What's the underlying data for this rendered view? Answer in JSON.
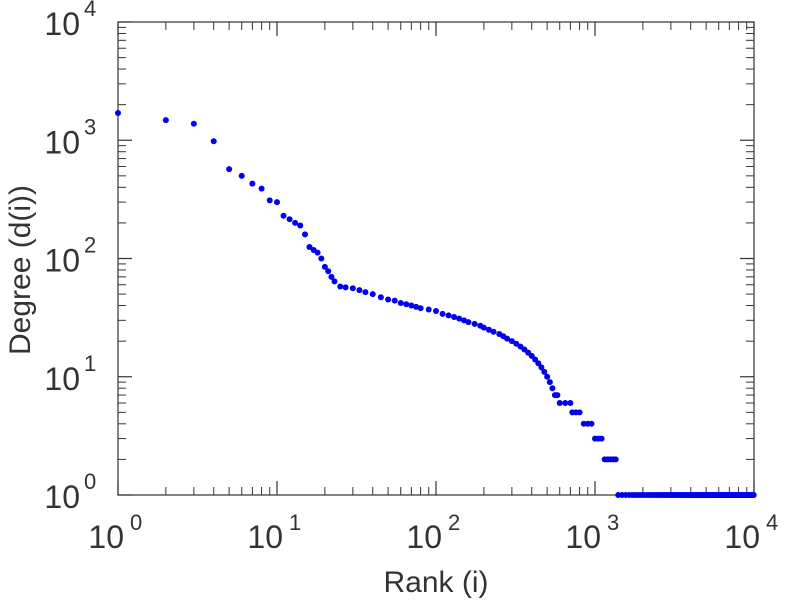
{
  "chart_data": {
    "type": "scatter",
    "title": "",
    "xlabel": "Rank (i)",
    "ylabel": "Degree (d(i))",
    "x_scale": "log",
    "y_scale": "log",
    "xlim": [
      1,
      10000
    ],
    "ylim": [
      1,
      10000
    ],
    "x_ticks": [
      {
        "base": "10",
        "exp": "0"
      },
      {
        "base": "10",
        "exp": "1"
      },
      {
        "base": "10",
        "exp": "2"
      },
      {
        "base": "10",
        "exp": "3"
      },
      {
        "base": "10",
        "exp": "4"
      }
    ],
    "y_ticks": [
      {
        "base": "10",
        "exp": "0"
      },
      {
        "base": "10",
        "exp": "1"
      },
      {
        "base": "10",
        "exp": "2"
      },
      {
        "base": "10",
        "exp": "3"
      },
      {
        "base": "10",
        "exp": "4"
      }
    ],
    "grid": false,
    "marker_color": "#0000ee",
    "series": [
      {
        "points": [
          [
            1,
            1700
          ],
          [
            2,
            1480
          ],
          [
            3,
            1380
          ],
          [
            4,
            980
          ],
          [
            5,
            570
          ],
          [
            6,
            500
          ],
          [
            7,
            430
          ],
          [
            8,
            390
          ],
          [
            9,
            310
          ],
          [
            10,
            300
          ],
          [
            11,
            230
          ],
          [
            12,
            215
          ],
          [
            13,
            200
          ],
          [
            14,
            190
          ],
          [
            15,
            160
          ],
          [
            16,
            125
          ],
          [
            17,
            118
          ],
          [
            18,
            112
          ],
          [
            19,
            100
          ],
          [
            20,
            85
          ],
          [
            21,
            78
          ],
          [
            22,
            70
          ],
          [
            23,
            64
          ],
          [
            25,
            58
          ],
          [
            27,
            57
          ],
          [
            30,
            56
          ],
          [
            33,
            54
          ],
          [
            36,
            52
          ],
          [
            40,
            50
          ],
          [
            45,
            47
          ],
          [
            50,
            45
          ],
          [
            55,
            44
          ],
          [
            60,
            42
          ],
          [
            65,
            41
          ],
          [
            70,
            40
          ],
          [
            75,
            39
          ],
          [
            80,
            38
          ],
          [
            90,
            37
          ],
          [
            100,
            36
          ],
          [
            110,
            34
          ],
          [
            120,
            33
          ],
          [
            130,
            32
          ],
          [
            140,
            31
          ],
          [
            150,
            30
          ],
          [
            160,
            29
          ],
          [
            175,
            28
          ],
          [
            190,
            27
          ],
          [
            200,
            26
          ],
          [
            215,
            25
          ],
          [
            230,
            24
          ],
          [
            250,
            23
          ],
          [
            265,
            22
          ],
          [
            280,
            21
          ],
          [
            300,
            20
          ],
          [
            320,
            19
          ],
          [
            340,
            18
          ],
          [
            360,
            17
          ],
          [
            380,
            16
          ],
          [
            400,
            15
          ],
          [
            420,
            14
          ],
          [
            440,
            13
          ],
          [
            460,
            12
          ],
          [
            480,
            11
          ],
          [
            500,
            10
          ],
          [
            520,
            9
          ],
          [
            540,
            8
          ],
          [
            560,
            7
          ],
          [
            580,
            7
          ],
          [
            600,
            6
          ],
          [
            650,
            6
          ],
          [
            700,
            6
          ],
          [
            720,
            5
          ],
          [
            760,
            5
          ],
          [
            800,
            5
          ],
          [
            850,
            4
          ],
          [
            900,
            4
          ],
          [
            950,
            4
          ],
          [
            1000,
            3
          ],
          [
            1050,
            3
          ],
          [
            1100,
            3
          ],
          [
            1150,
            2
          ],
          [
            1200,
            2
          ],
          [
            1250,
            2
          ],
          [
            1300,
            2
          ],
          [
            1350,
            2
          ],
          [
            1400,
            1
          ],
          [
            1480,
            1
          ],
          [
            1560,
            1
          ],
          [
            1640,
            1
          ],
          [
            1720,
            1
          ],
          [
            1800,
            1
          ],
          [
            1880,
            1
          ],
          [
            1960,
            1
          ],
          [
            2040,
            1
          ],
          [
            2120,
            1
          ],
          [
            2200,
            1
          ],
          [
            2280,
            1
          ],
          [
            2360,
            1
          ],
          [
            2440,
            1
          ],
          [
            2520,
            1
          ],
          [
            2600,
            1
          ],
          [
            2680,
            1
          ],
          [
            2760,
            1
          ],
          [
            2840,
            1
          ],
          [
            2920,
            1
          ],
          [
            3000,
            1
          ],
          [
            3080,
            1
          ],
          [
            3160,
            1
          ],
          [
            3240,
            1
          ],
          [
            3320,
            1
          ],
          [
            3400,
            1
          ],
          [
            3480,
            1
          ],
          [
            3560,
            1
          ],
          [
            3640,
            1
          ],
          [
            3720,
            1
          ],
          [
            3800,
            1
          ],
          [
            3880,
            1
          ],
          [
            3960,
            1
          ],
          [
            4040,
            1
          ],
          [
            4120,
            1
          ],
          [
            4200,
            1
          ],
          [
            4280,
            1
          ],
          [
            4360,
            1
          ],
          [
            4440,
            1
          ],
          [
            4520,
            1
          ],
          [
            4600,
            1
          ],
          [
            4680,
            1
          ],
          [
            4760,
            1
          ],
          [
            4840,
            1
          ],
          [
            4920,
            1
          ],
          [
            5000,
            1
          ],
          [
            5080,
            1
          ],
          [
            5160,
            1
          ],
          [
            5240,
            1
          ],
          [
            5320,
            1
          ],
          [
            5400,
            1
          ],
          [
            5480,
            1
          ],
          [
            5560,
            1
          ],
          [
            5640,
            1
          ],
          [
            5720,
            1
          ],
          [
            5800,
            1
          ],
          [
            5880,
            1
          ],
          [
            5960,
            1
          ],
          [
            6040,
            1
          ],
          [
            6120,
            1
          ],
          [
            6200,
            1
          ],
          [
            6280,
            1
          ],
          [
            6360,
            1
          ],
          [
            6440,
            1
          ],
          [
            6520,
            1
          ],
          [
            6600,
            1
          ],
          [
            6680,
            1
          ],
          [
            6760,
            1
          ],
          [
            6840,
            1
          ],
          [
            6920,
            1
          ],
          [
            7000,
            1
          ],
          [
            7080,
            1
          ],
          [
            7160,
            1
          ],
          [
            7240,
            1
          ],
          [
            7320,
            1
          ],
          [
            7400,
            1
          ],
          [
            7480,
            1
          ],
          [
            7560,
            1
          ],
          [
            7640,
            1
          ],
          [
            7720,
            1
          ],
          [
            7800,
            1
          ],
          [
            7880,
            1
          ],
          [
            7960,
            1
          ],
          [
            8040,
            1
          ],
          [
            8120,
            1
          ],
          [
            8200,
            1
          ],
          [
            8280,
            1
          ],
          [
            8360,
            1
          ],
          [
            8440,
            1
          ],
          [
            8520,
            1
          ],
          [
            8600,
            1
          ],
          [
            8680,
            1
          ],
          [
            8760,
            1
          ],
          [
            8840,
            1
          ],
          [
            8920,
            1
          ],
          [
            9000,
            1
          ],
          [
            9080,
            1
          ],
          [
            9160,
            1
          ],
          [
            9240,
            1
          ],
          [
            9320,
            1
          ],
          [
            9400,
            1
          ],
          [
            9480,
            1
          ],
          [
            9560,
            1
          ],
          [
            9640,
            1
          ],
          [
            9720,
            1
          ],
          [
            9800,
            1
          ],
          [
            9880,
            1
          ],
          [
            9960,
            1
          ]
        ]
      }
    ]
  }
}
